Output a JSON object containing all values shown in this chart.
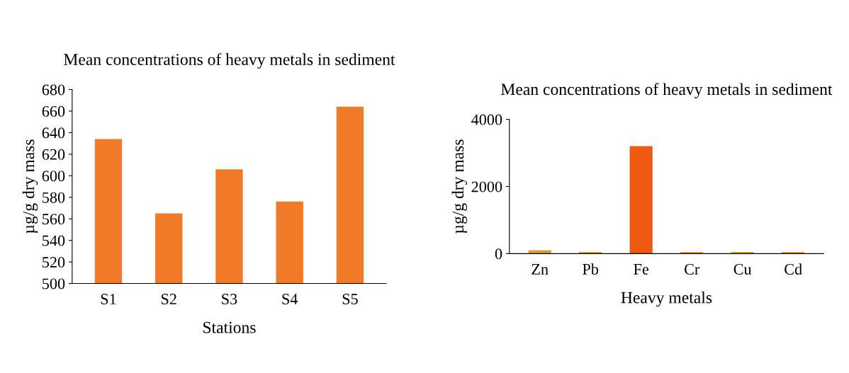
{
  "chart_data": [
    {
      "type": "bar",
      "title": "Mean concentrations of heavy metals in sediment",
      "xlabel": "Stations",
      "ylabel": "µg/g dry mass",
      "categories": [
        "S1",
        "S2",
        "S3",
        "S4",
        "S5"
      ],
      "values": [
        634,
        565,
        606,
        576,
        664
      ],
      "color": "#f07a28",
      "ylim": [
        500,
        680
      ],
      "yticks": [
        500,
        520,
        540,
        560,
        580,
        600,
        620,
        640,
        660,
        680
      ],
      "grid": false
    },
    {
      "type": "bar",
      "title": "Mean concentrations of heavy metals in sediment",
      "xlabel": "Heavy metals",
      "ylabel": "µg/g dry mass",
      "categories": [
        "Zn",
        "Pb",
        "Fe",
        "Cr",
        "Cu",
        "Cd"
      ],
      "values": [
        100,
        50,
        3200,
        50,
        50,
        50
      ],
      "colors": [
        "#d9a030",
        "#d9a030",
        "#f05a10",
        "#d9a030",
        "#d9a030",
        "#d9a030"
      ],
      "ylim": [
        0,
        4000
      ],
      "yticks": [
        0,
        2000,
        4000
      ],
      "grid": false
    }
  ]
}
